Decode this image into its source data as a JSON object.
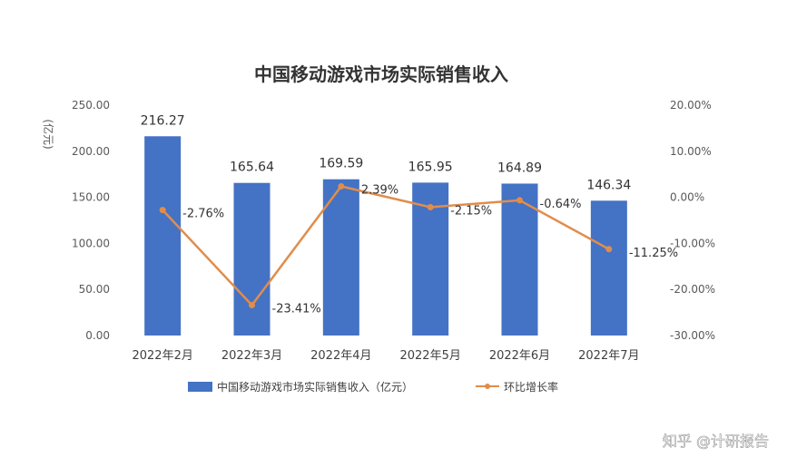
{
  "chart_data": {
    "type": "bar",
    "title": "中国移动游戏市场实际销售收入",
    "categories": [
      "2022年2月",
      "2022年3月",
      "2022年4月",
      "2022年5月",
      "2022年6月",
      "2022年7月"
    ],
    "series": [
      {
        "name": "中国移动游戏市场实际销售收入（亿元）",
        "type": "bar",
        "axis": "left",
        "color": "#4472C4",
        "values": [
          216.27,
          165.64,
          169.59,
          165.95,
          164.89,
          146.34
        ],
        "labels": [
          "216.27",
          "165.64",
          "169.59",
          "165.95",
          "164.89",
          "146.34"
        ]
      },
      {
        "name": "环比增长率",
        "type": "line",
        "axis": "right",
        "color": "#E08D4C",
        "values": [
          -2.76,
          -23.41,
          2.39,
          -2.15,
          -0.64,
          -11.25
        ],
        "labels": [
          "-2.76%",
          "-23.41%",
          "2.39%",
          "-2.15%",
          "-0.64%",
          "-11.25%"
        ]
      }
    ],
    "ylabel": "(亿元)",
    "ylim": [
      0,
      250
    ],
    "y_ticks": [
      "0.00",
      "50.00",
      "100.00",
      "150.00",
      "200.00",
      "250.00"
    ],
    "y2lim": [
      -30,
      20
    ],
    "y2_ticks": [
      "-30.00%",
      "-20.00%",
      "-10.00%",
      "0.00%",
      "10.00%",
      "20.00%"
    ],
    "legend_position": "bottom"
  },
  "watermark": {
    "brand": "知乎 @计研报告"
  }
}
